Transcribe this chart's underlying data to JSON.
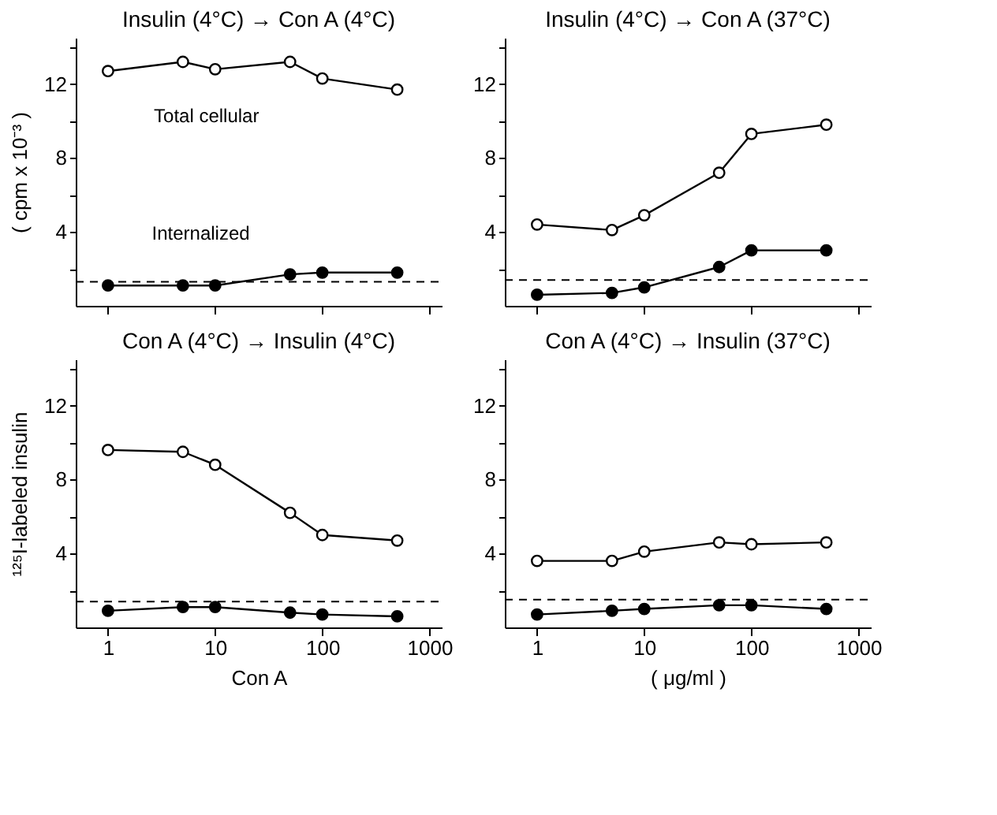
{
  "chart_data": [
    {
      "type": "line",
      "title": "Insulin (4°C) → Con A (4°C)",
      "ylabel": "( cpm x 10⁻³ )",
      "x": [
        1,
        5,
        10,
        50,
        100,
        500
      ],
      "log": "x",
      "xlim": [
        0.5,
        1300
      ],
      "xticks": [
        {
          "value": 1,
          "label": null
        },
        {
          "value": 10,
          "label": null
        },
        {
          "value": 100,
          "label": null
        },
        {
          "value": 1000,
          "label": null
        }
      ],
      "ylim": [
        0,
        14.5
      ],
      "yticks": [
        {
          "value": 2,
          "label": null
        },
        4,
        {
          "value": 6,
          "label": null
        },
        8,
        {
          "value": 10,
          "label": null
        },
        12,
        {
          "value": 14,
          "label": null
        }
      ],
      "tick_labels": "y",
      "grid": false,
      "marker": "circle",
      "line_style": "solid",
      "series": [
        {
          "color": "#000000",
          "values": [
            12.7,
            13.2,
            12.8,
            13.2,
            12.3,
            11.7
          ]
        },
        {
          "color": "#000000",
          "values": [
            1.1,
            1.1,
            1.1,
            1.7,
            1.8,
            1.8
          ]
        }
      ],
      "ref_lines": [
        {
          "axis": "y",
          "value": 1.3,
          "color": "#000000",
          "line_style": "dashed"
        }
      ],
      "annotations": [
        {
          "text": "Total cellular",
          "x": 3,
          "y": 13
        },
        {
          "text": "Internalized",
          "x": 40,
          "y": 1.7
        }
      ]
    },
    {
      "type": "line",
      "title": "Insulin (4°C) → Con A (37°C)",
      "x": [
        1,
        5,
        10,
        50,
        100,
        500
      ],
      "log": "x",
      "xlim": [
        0.5,
        1300
      ],
      "xticks": [
        {
          "value": 1,
          "label": null
        },
        {
          "value": 10,
          "label": null
        },
        {
          "value": 100,
          "label": null
        },
        {
          "value": 1000,
          "label": null
        }
      ],
      "ylim": [
        0,
        14.5
      ],
      "yticks": [
        {
          "value": 2,
          "label": null
        },
        4,
        {
          "value": 6,
          "label": null
        },
        8,
        {
          "value": 10,
          "label": null
        },
        12,
        {
          "value": 14,
          "label": null
        }
      ],
      "tick_labels": "y",
      "grid": false,
      "marker": "circle",
      "line_style": "solid",
      "series": [
        {
          "color": "#000000",
          "values": [
            4.4,
            4.1,
            4.9,
            7.2,
            9.3,
            9.8
          ]
        },
        {
          "color": "#000000",
          "values": [
            0.6,
            0.7,
            1.0,
            2.1,
            3.0,
            3.0
          ]
        }
      ],
      "ref_lines": [
        {
          "axis": "y",
          "value": 1.4,
          "color": "#000000",
          "line_style": "dashed"
        }
      ]
    },
    {
      "type": "line",
      "title": "Con A (4°C) → Insulin (4°C)",
      "ylabel": "¹²⁵I-labeled insulin",
      "xlabel": "Con A",
      "x": [
        1,
        5,
        10,
        50,
        100,
        500
      ],
      "log": "x",
      "xlim": [
        0.5,
        1300
      ],
      "xticks": [
        1,
        10,
        100,
        1000
      ],
      "ylim": [
        0,
        14.5
      ],
      "yticks": [
        {
          "value": 2,
          "label": null
        },
        4,
        {
          "value": 6,
          "label": null
        },
        8,
        {
          "value": 10,
          "label": null
        },
        12,
        {
          "value": 14,
          "label": null
        }
      ],
      "grid": false,
      "marker": "circle",
      "line_style": "solid",
      "series": [
        {
          "color": "#000000",
          "values": [
            9.6,
            9.5,
            8.8,
            6.2,
            5.0,
            4.7
          ]
        },
        {
          "color": "#000000",
          "values": [
            0.9,
            1.1,
            1.1,
            0.8,
            0.7,
            0.6
          ]
        }
      ],
      "ref_lines": [
        {
          "axis": "y",
          "value": 1.4,
          "color": "#000000",
          "line_style": "dashed"
        }
      ]
    },
    {
      "type": "line",
      "title": "Con A (4°C) → Insulin (37°C)",
      "xlabel": "( μg/ml )",
      "x": [
        1,
        5,
        10,
        50,
        100,
        500
      ],
      "log": "x",
      "xlim": [
        0.5,
        1300
      ],
      "xticks": [
        1,
        10,
        100,
        1000
      ],
      "ylim": [
        0,
        14.5
      ],
      "yticks": [
        {
          "value": 2,
          "label": null
        },
        4,
        {
          "value": 6,
          "label": null
        },
        8,
        {
          "value": 10,
          "label": null
        },
        12,
        {
          "value": 14,
          "label": null
        }
      ],
      "grid": false,
      "marker": "circle",
      "line_style": "solid",
      "series": [
        {
          "color": "#000000",
          "values": [
            3.6,
            3.6,
            4.1,
            4.6,
            4.5,
            4.6
          ]
        },
        {
          "color": "#000000",
          "values": [
            0.7,
            0.9,
            1.0,
            1.2,
            1.2,
            1.0
          ]
        }
      ],
      "ref_lines": [
        {
          "axis": "y",
          "value": 1.5,
          "color": "#000000",
          "line_style": "dashed"
        }
      ]
    }
  ]
}
